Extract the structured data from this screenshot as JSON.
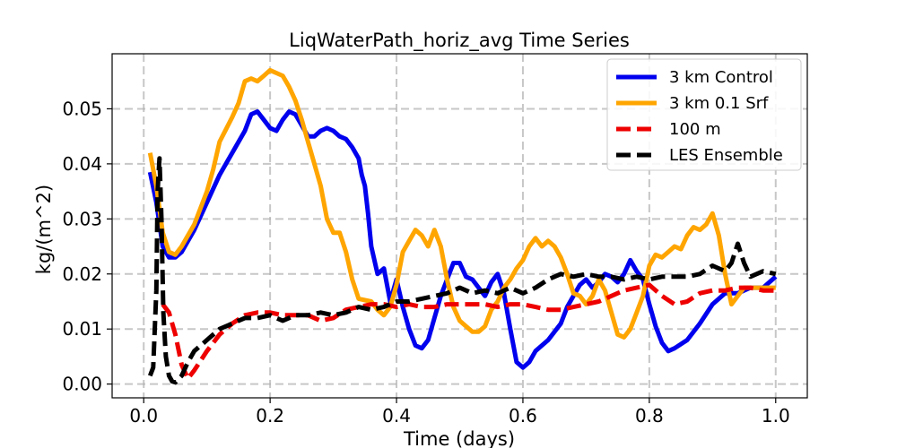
{
  "chart_data": {
    "type": "line",
    "title": "LiqWaterPath_horiz_avg Time Series",
    "xlabel": "Time (days)",
    "ylabel": "kg/(m^2)",
    "xlim": [
      -0.05,
      1.05
    ],
    "ylim": [
      -0.0025,
      0.06
    ],
    "xticks": [
      0.0,
      0.2,
      0.4,
      0.6,
      0.8,
      1.0
    ],
    "xtick_labels": [
      "0.0",
      "0.2",
      "0.4",
      "0.6",
      "0.8",
      "1.0"
    ],
    "yticks": [
      0.0,
      0.01,
      0.02,
      0.03,
      0.04,
      0.05
    ],
    "ytick_labels": [
      "0.00",
      "0.01",
      "0.02",
      "0.03",
      "0.04",
      "0.05"
    ],
    "grid": true,
    "legend_position": "top-right",
    "series": [
      {
        "name": "3 km Control",
        "color": "#0000ee",
        "dash": "solid",
        "points": [
          [
            0.01,
            0.0385
          ],
          [
            0.02,
            0.033
          ],
          [
            0.03,
            0.025
          ],
          [
            0.04,
            0.023
          ],
          [
            0.05,
            0.023
          ],
          [
            0.06,
            0.024
          ],
          [
            0.08,
            0.028
          ],
          [
            0.1,
            0.033
          ],
          [
            0.12,
            0.038
          ],
          [
            0.14,
            0.042
          ],
          [
            0.16,
            0.046
          ],
          [
            0.17,
            0.049
          ],
          [
            0.18,
            0.0495
          ],
          [
            0.19,
            0.048
          ],
          [
            0.2,
            0.0465
          ],
          [
            0.21,
            0.046
          ],
          [
            0.22,
            0.048
          ],
          [
            0.23,
            0.0495
          ],
          [
            0.24,
            0.049
          ],
          [
            0.25,
            0.047
          ],
          [
            0.26,
            0.045
          ],
          [
            0.27,
            0.045
          ],
          [
            0.28,
            0.046
          ],
          [
            0.29,
            0.0465
          ],
          [
            0.3,
            0.046
          ],
          [
            0.31,
            0.045
          ],
          [
            0.32,
            0.0445
          ],
          [
            0.33,
            0.043
          ],
          [
            0.34,
            0.041
          ],
          [
            0.345,
            0.038
          ],
          [
            0.35,
            0.036
          ],
          [
            0.355,
            0.031
          ],
          [
            0.36,
            0.025
          ],
          [
            0.37,
            0.02
          ],
          [
            0.38,
            0.021
          ],
          [
            0.39,
            0.015
          ],
          [
            0.4,
            0.019
          ],
          [
            0.41,
            0.014
          ],
          [
            0.42,
            0.01
          ],
          [
            0.43,
            0.007
          ],
          [
            0.44,
            0.0065
          ],
          [
            0.45,
            0.008
          ],
          [
            0.46,
            0.012
          ],
          [
            0.47,
            0.016
          ],
          [
            0.48,
            0.019
          ],
          [
            0.49,
            0.022
          ],
          [
            0.5,
            0.022
          ],
          [
            0.51,
            0.0195
          ],
          [
            0.52,
            0.019
          ],
          [
            0.53,
            0.0175
          ],
          [
            0.54,
            0.016
          ],
          [
            0.55,
            0.0185
          ],
          [
            0.56,
            0.02
          ],
          [
            0.57,
            0.0165
          ],
          [
            0.58,
            0.01
          ],
          [
            0.59,
            0.004
          ],
          [
            0.6,
            0.003
          ],
          [
            0.61,
            0.004
          ],
          [
            0.62,
            0.006
          ],
          [
            0.64,
            0.008
          ],
          [
            0.66,
            0.011
          ],
          [
            0.67,
            0.014
          ],
          [
            0.68,
            0.016
          ],
          [
            0.69,
            0.018
          ],
          [
            0.7,
            0.019
          ],
          [
            0.71,
            0.0175
          ],
          [
            0.72,
            0.0185
          ],
          [
            0.73,
            0.02
          ],
          [
            0.74,
            0.0195
          ],
          [
            0.75,
            0.0185
          ],
          [
            0.76,
            0.02
          ],
          [
            0.77,
            0.0225
          ],
          [
            0.78,
            0.0205
          ],
          [
            0.79,
            0.019
          ],
          [
            0.8,
            0.0145
          ],
          [
            0.81,
            0.0105
          ],
          [
            0.82,
            0.0075
          ],
          [
            0.83,
            0.006
          ],
          [
            0.84,
            0.0065
          ],
          [
            0.86,
            0.008
          ],
          [
            0.88,
            0.011
          ],
          [
            0.9,
            0.0145
          ],
          [
            0.92,
            0.0165
          ],
          [
            0.94,
            0.0165
          ],
          [
            0.96,
            0.0175
          ],
          [
            0.98,
            0.0175
          ],
          [
            1.0,
            0.0195
          ]
        ]
      },
      {
        "name": "3 km 0.1 Srf",
        "color": "#ffa500",
        "dash": "solid",
        "points": [
          [
            0.01,
            0.042
          ],
          [
            0.02,
            0.036
          ],
          [
            0.03,
            0.0275
          ],
          [
            0.04,
            0.024
          ],
          [
            0.05,
            0.0235
          ],
          [
            0.06,
            0.025
          ],
          [
            0.08,
            0.029
          ],
          [
            0.1,
            0.035
          ],
          [
            0.11,
            0.039
          ],
          [
            0.12,
            0.044
          ],
          [
            0.14,
            0.0485
          ],
          [
            0.15,
            0.051
          ],
          [
            0.16,
            0.055
          ],
          [
            0.17,
            0.0555
          ],
          [
            0.18,
            0.055
          ],
          [
            0.19,
            0.056
          ],
          [
            0.2,
            0.057
          ],
          [
            0.21,
            0.0565
          ],
          [
            0.22,
            0.056
          ],
          [
            0.23,
            0.054
          ],
          [
            0.24,
            0.0515
          ],
          [
            0.25,
            0.048
          ],
          [
            0.26,
            0.044
          ],
          [
            0.27,
            0.04
          ],
          [
            0.28,
            0.036
          ],
          [
            0.29,
            0.03
          ],
          [
            0.3,
            0.0275
          ],
          [
            0.31,
            0.0275
          ],
          [
            0.32,
            0.024
          ],
          [
            0.33,
            0.019
          ],
          [
            0.34,
            0.0155
          ],
          [
            0.36,
            0.015
          ],
          [
            0.37,
            0.0135
          ],
          [
            0.38,
            0.0125
          ],
          [
            0.39,
            0.014
          ],
          [
            0.4,
            0.018
          ],
          [
            0.41,
            0.024
          ],
          [
            0.42,
            0.026
          ],
          [
            0.43,
            0.028
          ],
          [
            0.44,
            0.027
          ],
          [
            0.45,
            0.025
          ],
          [
            0.46,
            0.028
          ],
          [
            0.47,
            0.025
          ],
          [
            0.48,
            0.019
          ],
          [
            0.49,
            0.014
          ],
          [
            0.5,
            0.0115
          ],
          [
            0.51,
            0.0105
          ],
          [
            0.52,
            0.0095
          ],
          [
            0.53,
            0.0095
          ],
          [
            0.54,
            0.0105
          ],
          [
            0.55,
            0.0135
          ],
          [
            0.56,
            0.015
          ],
          [
            0.57,
            0.0175
          ],
          [
            0.58,
            0.019
          ],
          [
            0.59,
            0.021
          ],
          [
            0.6,
            0.0225
          ],
          [
            0.61,
            0.025
          ],
          [
            0.62,
            0.0265
          ],
          [
            0.63,
            0.025
          ],
          [
            0.64,
            0.026
          ],
          [
            0.65,
            0.025
          ],
          [
            0.66,
            0.023
          ],
          [
            0.67,
            0.02
          ],
          [
            0.68,
            0.0165
          ],
          [
            0.69,
            0.016
          ],
          [
            0.7,
            0.0145
          ],
          [
            0.71,
            0.016
          ],
          [
            0.72,
            0.019
          ],
          [
            0.73,
            0.017
          ],
          [
            0.74,
            0.013
          ],
          [
            0.75,
            0.009
          ],
          [
            0.76,
            0.0085
          ],
          [
            0.77,
            0.01
          ],
          [
            0.78,
            0.013
          ],
          [
            0.79,
            0.016
          ],
          [
            0.8,
            0.0215
          ],
          [
            0.81,
            0.0235
          ],
          [
            0.82,
            0.023
          ],
          [
            0.83,
            0.024
          ],
          [
            0.84,
            0.025
          ],
          [
            0.85,
            0.0245
          ],
          [
            0.86,
            0.027
          ],
          [
            0.87,
            0.0285
          ],
          [
            0.88,
            0.028
          ],
          [
            0.89,
            0.029
          ],
          [
            0.9,
            0.031
          ],
          [
            0.91,
            0.027
          ],
          [
            0.92,
            0.02
          ],
          [
            0.93,
            0.0145
          ],
          [
            0.94,
            0.016
          ],
          [
            0.95,
            0.0175
          ],
          [
            1.0,
            0.0175
          ]
        ]
      },
      {
        "name": "100 m",
        "color": "#ee0000",
        "dash": "dashed",
        "points": [
          [
            0.03,
            0.0145
          ],
          [
            0.04,
            0.013
          ],
          [
            0.05,
            0.009
          ],
          [
            0.06,
            0.0035
          ],
          [
            0.07,
            0.001
          ],
          [
            0.08,
            0.0025
          ],
          [
            0.1,
            0.006
          ],
          [
            0.12,
            0.009
          ],
          [
            0.14,
            0.011
          ],
          [
            0.16,
            0.0125
          ],
          [
            0.18,
            0.013
          ],
          [
            0.2,
            0.013
          ],
          [
            0.22,
            0.0125
          ],
          [
            0.24,
            0.0125
          ],
          [
            0.26,
            0.0125
          ],
          [
            0.28,
            0.0115
          ],
          [
            0.3,
            0.012
          ],
          [
            0.32,
            0.0135
          ],
          [
            0.34,
            0.014
          ],
          [
            0.36,
            0.0145
          ],
          [
            0.38,
            0.0145
          ],
          [
            0.4,
            0.014
          ],
          [
            0.42,
            0.0145
          ],
          [
            0.44,
            0.014
          ],
          [
            0.46,
            0.014
          ],
          [
            0.48,
            0.0145
          ],
          [
            0.5,
            0.0145
          ],
          [
            0.52,
            0.0145
          ],
          [
            0.54,
            0.0145
          ],
          [
            0.56,
            0.014
          ],
          [
            0.58,
            0.0145
          ],
          [
            0.6,
            0.0145
          ],
          [
            0.62,
            0.014
          ],
          [
            0.64,
            0.0135
          ],
          [
            0.66,
            0.0135
          ],
          [
            0.68,
            0.014
          ],
          [
            0.7,
            0.0145
          ],
          [
            0.72,
            0.015
          ],
          [
            0.74,
            0.016
          ],
          [
            0.76,
            0.017
          ],
          [
            0.78,
            0.0175
          ],
          [
            0.8,
            0.018
          ],
          [
            0.82,
            0.016
          ],
          [
            0.84,
            0.0145
          ],
          [
            0.86,
            0.015
          ],
          [
            0.88,
            0.0165
          ],
          [
            0.9,
            0.017
          ],
          [
            0.92,
            0.017
          ],
          [
            0.94,
            0.0175
          ],
          [
            0.96,
            0.0175
          ],
          [
            0.98,
            0.017
          ],
          [
            1.0,
            0.017
          ]
        ]
      },
      {
        "name": "LES Ensemble",
        "color": "#000000",
        "dash": "dashed",
        "points": [
          [
            0.01,
            0.0015
          ],
          [
            0.015,
            0.003
          ],
          [
            0.02,
            0.017
          ],
          [
            0.022,
            0.035
          ],
          [
            0.025,
            0.041
          ],
          [
            0.028,
            0.03
          ],
          [
            0.031,
            0.013
          ],
          [
            0.035,
            0.005
          ],
          [
            0.04,
            0.0015
          ],
          [
            0.045,
            0.0005
          ],
          [
            0.05,
            0.0003
          ],
          [
            0.06,
            0.0015
          ],
          [
            0.07,
            0.004
          ],
          [
            0.08,
            0.006
          ],
          [
            0.1,
            0.008
          ],
          [
            0.12,
            0.01
          ],
          [
            0.14,
            0.011
          ],
          [
            0.16,
            0.012
          ],
          [
            0.18,
            0.012
          ],
          [
            0.2,
            0.0125
          ],
          [
            0.22,
            0.0115
          ],
          [
            0.24,
            0.0125
          ],
          [
            0.26,
            0.0125
          ],
          [
            0.28,
            0.013
          ],
          [
            0.3,
            0.0125
          ],
          [
            0.32,
            0.013
          ],
          [
            0.34,
            0.014
          ],
          [
            0.36,
            0.0135
          ],
          [
            0.38,
            0.014
          ],
          [
            0.4,
            0.015
          ],
          [
            0.42,
            0.015
          ],
          [
            0.44,
            0.0155
          ],
          [
            0.46,
            0.016
          ],
          [
            0.48,
            0.0165
          ],
          [
            0.5,
            0.0175
          ],
          [
            0.52,
            0.0165
          ],
          [
            0.54,
            0.017
          ],
          [
            0.56,
            0.0165
          ],
          [
            0.58,
            0.0175
          ],
          [
            0.6,
            0.0165
          ],
          [
            0.62,
            0.0175
          ],
          [
            0.64,
            0.019
          ],
          [
            0.66,
            0.02
          ],
          [
            0.68,
            0.0195
          ],
          [
            0.7,
            0.02
          ],
          [
            0.72,
            0.0195
          ],
          [
            0.74,
            0.0195
          ],
          [
            0.76,
            0.019
          ],
          [
            0.78,
            0.0195
          ],
          [
            0.8,
            0.019
          ],
          [
            0.82,
            0.0195
          ],
          [
            0.84,
            0.0195
          ],
          [
            0.86,
            0.0195
          ],
          [
            0.88,
            0.02
          ],
          [
            0.9,
            0.0215
          ],
          [
            0.92,
            0.0205
          ],
          [
            0.93,
            0.022
          ],
          [
            0.94,
            0.0255
          ],
          [
            0.95,
            0.022
          ],
          [
            0.96,
            0.0195
          ],
          [
            0.98,
            0.0205
          ],
          [
            1.0,
            0.02
          ]
        ]
      }
    ]
  }
}
